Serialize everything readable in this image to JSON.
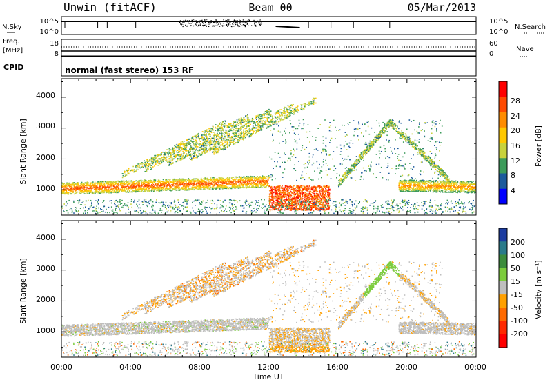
{
  "header": {
    "station": "Unwin (fitACF)",
    "beam": "Beam 00",
    "date": "05/Mar/2013"
  },
  "noise_panel": {
    "left_label": "N.Sky",
    "right_label": "N.Search",
    "ticks": [
      "10^5",
      "10^0"
    ]
  },
  "freq_panel": {
    "left_label_line1": "Freq.",
    "left_label_line2": "[MHz]",
    "left_ticks": [
      "18",
      "8"
    ],
    "right_label": "Nave",
    "right_ticks": [
      "60",
      "0"
    ]
  },
  "cpid": {
    "label": "CPID",
    "text": "normal (fast stereo) 153 RF"
  },
  "power_panel": {
    "ylabel": "Slant Range [km]",
    "yticks": [
      "4000",
      "3000",
      "2000",
      "1000"
    ],
    "colorbar_label": "Power [dB]",
    "colorbar_ticks": [
      "28",
      "24",
      "20",
      "16",
      "12",
      "8",
      "4"
    ],
    "colorbar_colors": [
      "#ff0000",
      "#ff4a00",
      "#ff8c00",
      "#ffc800",
      "#c8d23c",
      "#3c9b5a",
      "#1c5a9c",
      "#0000ff"
    ]
  },
  "velocity_panel": {
    "ylabel": "Slant Range [km]",
    "yticks": [
      "4000",
      "3000",
      "2000",
      "1000"
    ],
    "colorbar_label": "Velocity [m s⁻¹]",
    "colorbar_ticks": [
      "200",
      "100",
      "50",
      "15",
      "-15",
      "-50",
      "-100",
      "-200"
    ],
    "colorbar_colors": [
      "#1c3ca0",
      "#2a7a8a",
      "#3c8c3c",
      "#7ccc3c",
      "#bebebe",
      "#ffa000",
      "#ff6a00",
      "#ff2a00",
      "#ff0000"
    ]
  },
  "xaxis": {
    "ticks": [
      "00:00",
      "04:00",
      "08:00",
      "12:00",
      "16:00",
      "20:00",
      "00:00"
    ],
    "label": "Time UT"
  },
  "chart_data": {
    "type": "heatmap",
    "title": "Unwin (fitACF)  Beam 00  05/Mar/2013",
    "xlabel": "Time UT",
    "ylabel": "Slant Range [km]",
    "xlim_hours": [
      0,
      24
    ],
    "ylim_km": [
      180,
      4600
    ],
    "panels": [
      {
        "name": "Power",
        "unit": "dB",
        "scale": [
          0,
          30
        ],
        "echo_bands": [
          {
            "t_start": 0.0,
            "t_end": 12.0,
            "range_km": [
              950,
              1250
            ],
            "power_db": 22
          },
          {
            "t_start": 12.0,
            "t_end": 15.5,
            "range_km": [
              400,
              1100
            ],
            "power_db": 28
          },
          {
            "t_start": 20.0,
            "t_end": 24.0,
            "range_km": [
              950,
              1300
            ],
            "power_db": 20
          },
          {
            "t_start": 4.0,
            "t_end": 11.5,
            "range_km": [
              1500,
              3300
            ],
            "power_db": 10
          }
        ]
      },
      {
        "name": "Velocity",
        "unit": "m s^-1",
        "scale": [
          -200,
          200
        ],
        "echo_bands": [
          {
            "t_start": 0.0,
            "t_end": 12.0,
            "range_km": [
              950,
              1250
            ],
            "velocity": 0
          },
          {
            "t_start": 12.0,
            "t_end": 15.5,
            "range_km": [
              400,
              1100
            ],
            "velocity": -60
          },
          {
            "t_start": 17.5,
            "t_end": 19.5,
            "range_km": [
              1500,
              3300
            ],
            "velocity": 20
          }
        ]
      }
    ],
    "noise_sky_range": [
      "10^0",
      "10^5"
    ],
    "freq_range_mhz": [
      8,
      18
    ],
    "nave_range": [
      0,
      60
    ]
  }
}
